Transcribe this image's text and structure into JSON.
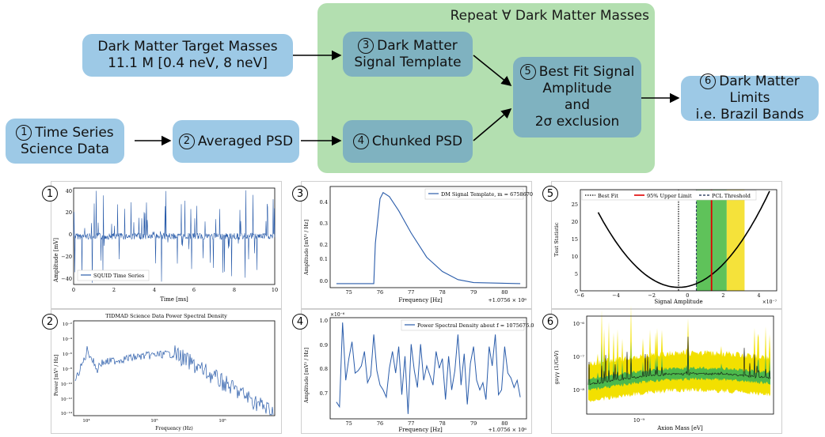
{
  "flow": {
    "repeat_label": "Repeat ∀ Dark Matter Masses",
    "target_masses": {
      "line1": "Dark Matter Target Masses",
      "line2": "11.1 M [0.4 neV, 8 neV]"
    },
    "time_series": {
      "num": "1",
      "line1": "Time Series",
      "line2": "Science Data"
    },
    "averaged_psd": {
      "num": "2",
      "line1": "Averaged PSD"
    },
    "signal_template": {
      "num": "3",
      "line1": "Dark Matter",
      "line2": "Signal Template"
    },
    "chunked_psd": {
      "num": "4",
      "line1": "Chunked PSD"
    },
    "best_fit": {
      "num": "5",
      "line1": "Best Fit Signal",
      "line2": "Amplitude",
      "line3": "and",
      "line4": "2σ exclusion"
    },
    "limits": {
      "num": "6",
      "line1": "Dark Matter Limits",
      "line2": "i.e. Brazil Bands"
    },
    "colors": {
      "blue_box": "#9dc9e6",
      "teal_box": "#7fb2c0",
      "repeat_bg": "#b3dfb0",
      "line": "#2a5caa"
    }
  },
  "plots": {
    "p1": {
      "num": "1",
      "ylabel": "Amplitude [mV]",
      "xlabel": "Time [ms]",
      "legend": "SQUID Time Series",
      "xticks": [
        "0",
        "2",
        "4",
        "6",
        "8",
        "10"
      ],
      "yticks": [
        "40",
        "20",
        "0",
        "−20",
        "−40"
      ]
    },
    "p2": {
      "num": "2",
      "title": "TIDMAD Science Data Power Spectral Density",
      "ylabel": "Power [mV² / Hz]",
      "xlabel": "Frequency (Hz)",
      "xticks": [
        "10⁴",
        "10⁵",
        "10⁶"
      ],
      "yticks": [
        "10⁻²",
        "10⁻⁴",
        "10⁻⁶",
        "10⁻⁸",
        "10⁻¹⁰",
        "10⁻¹²",
        "10⁻¹⁴"
      ]
    },
    "p3": {
      "num": "3",
      "legend": "DM Signal Template, m = 6758670",
      "ylabel": "Amplitude [mV² / Hz]",
      "xlabel": "Frequency [Hz]",
      "offset": "+1.0756 × 10⁶",
      "xticks": [
        "75",
        "76",
        "77",
        "78",
        "79",
        "80"
      ],
      "yticks": [
        "0.4",
        "0.3",
        "0.2",
        "0.1",
        "0.0"
      ]
    },
    "p4": {
      "num": "4",
      "legend": "Power Spectral Density about f = 1075676.0",
      "ylabel": "Amplitude [mV² / Hz]",
      "xlabel": "Frequency [Hz]",
      "offset": "+1.0756 × 10⁶",
      "yscale": "×10⁻⁶",
      "xticks": [
        "75",
        "76",
        "77",
        "78",
        "79",
        "80"
      ],
      "yticks": [
        "1.0",
        "0.9",
        "0.8",
        "0.7"
      ]
    },
    "p5": {
      "num": "5",
      "legend": [
        "Best Fit",
        "95% Upper Limit",
        "PCL Threshold"
      ],
      "ylabel": "Test Statistic",
      "xlabel": "Signal Amplitude",
      "xscale": "×10⁻⁷",
      "xticks": [
        "−6",
        "−4",
        "−2",
        "0",
        "2",
        "4"
      ],
      "yticks": [
        "25",
        "20",
        "15",
        "10",
        "5",
        "0"
      ]
    },
    "p6": {
      "num": "6",
      "ylabel": "gaγγ (1/GeV)",
      "xlabel": "Axion Mass [eV]",
      "xticks": [
        "10⁻⁹"
      ],
      "yticks": [
        "10⁻⁶",
        "10⁻⁷",
        "10⁻⁸"
      ]
    }
  },
  "chart_data": [
    {
      "type": "line",
      "name": "p3",
      "series": [
        {
          "name": "DM Signal Template, m = 6758670",
          "x": [
            74.6,
            75.8,
            75.85,
            76.0,
            76.1,
            76.3,
            76.6,
            77.0,
            77.5,
            78.0,
            78.5,
            79.0,
            80.5
          ],
          "y": [
            0.0,
            0.0,
            0.2,
            0.42,
            0.45,
            0.43,
            0.36,
            0.25,
            0.13,
            0.06,
            0.02,
            0.005,
            0.0
          ]
        }
      ],
      "xlim": [
        74.4,
        80.7
      ],
      "ylim": [
        -0.02,
        0.48
      ]
    },
    {
      "type": "line",
      "name": "p4",
      "series": [
        {
          "name": "Power Spectral Density about f = 1075676.0",
          "x": [
            74.6,
            74.7,
            74.8,
            74.9,
            75.0,
            75.1,
            75.2,
            75.3,
            75.4,
            75.5,
            75.6,
            75.7,
            75.8,
            75.9,
            76.0,
            76.1,
            76.2,
            76.3,
            76.4,
            76.5,
            76.6,
            76.7,
            76.8,
            76.9,
            77.0,
            77.1,
            77.2,
            77.3,
            77.4,
            77.5,
            77.6,
            77.7,
            77.8,
            77.9,
            78.0,
            78.1,
            78.2,
            78.3,
            78.4,
            78.5,
            78.6,
            78.7,
            78.8,
            78.9,
            79.0,
            79.1,
            79.2,
            79.3,
            79.4,
            79.5,
            79.6,
            79.7,
            79.8,
            79.9,
            80.0,
            80.1,
            80.2,
            80.3,
            80.4,
            80.5
          ],
          "y": [
            0.67,
            0.65,
            1.0,
            0.76,
            0.85,
            0.92,
            0.79,
            0.8,
            0.82,
            0.88,
            0.75,
            0.78,
            0.95,
            0.8,
            0.74,
            0.72,
            0.69,
            0.81,
            0.88,
            0.79,
            0.9,
            0.7,
            0.86,
            0.62,
            0.91,
            0.8,
            0.73,
            0.91,
            0.76,
            0.82,
            0.78,
            0.74,
            0.88,
            0.81,
            0.85,
            0.68,
            0.86,
            0.72,
            0.8,
            0.95,
            0.74,
            0.87,
            0.66,
            0.83,
            0.9,
            0.76,
            0.72,
            0.75,
            0.68,
            0.9,
            0.82,
            0.95,
            0.7,
            0.72,
            0.9,
            0.79,
            0.77,
            0.73,
            0.76,
            0.69
          ]
        }
      ],
      "xlim": [
        74.4,
        80.7
      ],
      "ylim": [
        0.6,
        1.02
      ]
    },
    {
      "type": "line",
      "name": "p5",
      "series": [
        {
          "name": "Test Statistic",
          "x_range": [
            -5.0,
            4.6
          ],
          "min_at": -0.5
        }
      ],
      "best_fit": -0.5,
      "upper_limit": 1.35,
      "pcl_threshold": 0.5,
      "band_green": [
        0.5,
        2.2
      ],
      "band_yellow": [
        2.2,
        3.2
      ],
      "xlim": [
        -6,
        5
      ],
      "ylim": [
        -1,
        28
      ]
    }
  ]
}
